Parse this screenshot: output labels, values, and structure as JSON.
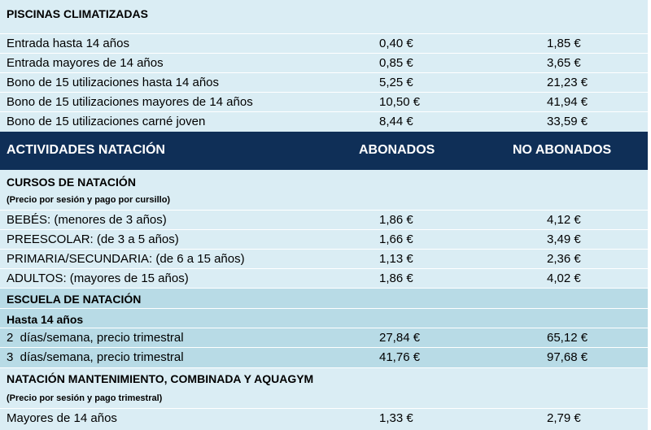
{
  "sections": {
    "piscinas": {
      "title": "PISCINAS CLIMATIZADAS",
      "rows": [
        {
          "label": "Entrada hasta 14 años",
          "abonados": "0,40 €",
          "no_abonados": "1,85 €"
        },
        {
          "label": "Entrada mayores de 14 años",
          "abonados": "0,85 €",
          "no_abonados": "3,65 €"
        },
        {
          "label": "Bono de 15 utilizaciones hasta 14 años",
          "abonados": "5,25 €",
          "no_abonados": "21,23 €"
        },
        {
          "label": "Bono de 15 utilizaciones mayores de 14 años",
          "abonados": "10,50 €",
          "no_abonados": "41,94 €"
        },
        {
          "label": "Bono de 15 utilizaciones carné joven",
          "abonados": "8,44 €",
          "no_abonados": "33,59 €"
        }
      ]
    },
    "header": {
      "col1": "ACTIVIDADES NATACIÓN",
      "col2": "ABONADOS",
      "col3": "NO ABONADOS"
    },
    "cursos": {
      "title": "CURSOS DE NATACIÓN",
      "note": "(Precio por sesión y pago por cursillo)",
      "rows": [
        {
          "label": "BEBÉS: (menores de 3 años)",
          "abonados": "1,86 €",
          "no_abonados": "4,12 €"
        },
        {
          "label": "PREESCOLAR: (de 3 a 5 años)",
          "abonados": "1,66 €",
          "no_abonados": "3,49 €"
        },
        {
          "label": "PRIMARIA/SECUNDARIA: (de 6 a 15 años)",
          "abonados": "1,13 €",
          "no_abonados": "2,36 €"
        },
        {
          "label": "ADULTOS: (mayores de 15 años)",
          "abonados": "1,86 €",
          "no_abonados": "4,02 €"
        }
      ]
    },
    "escuela": {
      "title": "ESCUELA DE NATACIÓN",
      "subtitle": "Hasta 14 años",
      "rows": [
        {
          "label": "2  días/semana, precio trimestral",
          "abonados": "27,84 €",
          "no_abonados": "65,12 €"
        },
        {
          "label": "3  días/semana, precio trimestral",
          "abonados": "41,76 €",
          "no_abonados": "97,68 €"
        }
      ]
    },
    "mantenimiento": {
      "title": "NATACIÓN MANTENIMIENTO, COMBINADA Y AQUAGYM",
      "note": "(Precio por sesión y pago trimestral)",
      "rows": [
        {
          "label": "Mayores de 14 años",
          "abonados": "1,33 €",
          "no_abonados": "2,79 €"
        }
      ]
    }
  },
  "colors": {
    "sheet_bg": "#daedf4",
    "band_bg": "#b8dbe6",
    "header_bg": "#0f2f57",
    "header_text": "#ffffff"
  }
}
